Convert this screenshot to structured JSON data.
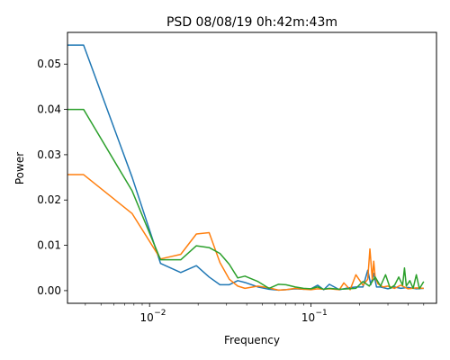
{
  "chart_data": {
    "type": "line",
    "title": "PSD 08/08/19 0h:42m:43m",
    "xlabel": "Frequency",
    "ylabel": "Power",
    "xscale": "log",
    "xlim": [
      0.0031,
      0.6
    ],
    "ylim": [
      -0.0028,
      0.057
    ],
    "yticks": [
      0.0,
      0.01,
      0.02,
      0.03,
      0.04,
      0.05
    ],
    "ytick_labels": [
      "0.00",
      "0.01",
      "0.02",
      "0.03",
      "0.04",
      "0.05"
    ],
    "xticks": [
      0.01,
      0.1
    ],
    "xtick_labels": [
      "10",
      "10"
    ],
    "xtick_exponents": [
      "−2",
      "−1"
    ],
    "grid": false,
    "series": [
      {
        "color": "#1f77b4",
        "x": [
          0.0031,
          0.0039,
          0.0078,
          0.0117,
          0.0156,
          0.0195,
          0.0234,
          0.0273,
          0.0312,
          0.0352,
          0.039,
          0.047,
          0.055,
          0.063,
          0.07,
          0.08,
          0.09,
          0.1,
          0.11,
          0.12,
          0.13,
          0.15,
          0.17,
          0.19,
          0.21,
          0.225,
          0.235,
          0.245,
          0.255,
          0.27,
          0.3,
          0.33,
          0.36,
          0.4,
          0.45,
          0.5
        ],
        "y": [
          0.0542,
          0.0542,
          0.025,
          0.006,
          0.004,
          0.0055,
          0.003,
          0.0013,
          0.0013,
          0.0022,
          0.0018,
          0.0008,
          0.0003,
          0.0001,
          0.0002,
          0.0004,
          0.0003,
          0.0004,
          0.0012,
          0.0002,
          0.0014,
          0.0002,
          0.0006,
          0.0008,
          0.0008,
          0.0045,
          0.0013,
          0.0038,
          0.0008,
          0.0008,
          0.0004,
          0.0008,
          0.0005,
          0.0007,
          0.0004,
          0.0005
        ]
      },
      {
        "color": "#ff7f0e",
        "x": [
          0.0031,
          0.0039,
          0.0078,
          0.0117,
          0.0156,
          0.0195,
          0.0234,
          0.0273,
          0.0312,
          0.0352,
          0.039,
          0.047,
          0.055,
          0.063,
          0.07,
          0.08,
          0.09,
          0.1,
          0.11,
          0.12,
          0.13,
          0.15,
          0.16,
          0.175,
          0.19,
          0.21,
          0.225,
          0.232,
          0.24,
          0.245,
          0.25,
          0.26,
          0.28,
          0.3,
          0.33,
          0.36,
          0.4,
          0.45,
          0.5
        ],
        "y": [
          0.0256,
          0.0256,
          0.017,
          0.007,
          0.008,
          0.0125,
          0.0128,
          0.0062,
          0.0025,
          0.001,
          0.0005,
          0.001,
          0.0006,
          0.0001,
          0.0002,
          0.0005,
          0.0003,
          0.0002,
          0.0004,
          0.0003,
          0.0004,
          0.0002,
          0.0017,
          0.0002,
          0.0035,
          0.0012,
          0.0025,
          0.0092,
          0.0025,
          0.0065,
          0.003,
          0.0015,
          0.0008,
          0.001,
          0.0005,
          0.0012,
          0.0004,
          0.0006,
          0.0005
        ]
      },
      {
        "color": "#2ca02c",
        "x": [
          0.0031,
          0.0039,
          0.0078,
          0.0117,
          0.0156,
          0.0195,
          0.0234,
          0.0273,
          0.0312,
          0.0352,
          0.039,
          0.047,
          0.055,
          0.063,
          0.07,
          0.08,
          0.09,
          0.1,
          0.11,
          0.12,
          0.13,
          0.15,
          0.17,
          0.19,
          0.21,
          0.23,
          0.25,
          0.27,
          0.29,
          0.31,
          0.33,
          0.35,
          0.37,
          0.38,
          0.39,
          0.41,
          0.43,
          0.45,
          0.47,
          0.5
        ],
        "y": [
          0.04,
          0.04,
          0.022,
          0.0068,
          0.0068,
          0.0099,
          0.0095,
          0.0082,
          0.0058,
          0.0028,
          0.0032,
          0.002,
          0.0005,
          0.0014,
          0.0013,
          0.0008,
          0.0005,
          0.0004,
          0.0008,
          0.0003,
          0.0005,
          0.0003,
          0.0004,
          0.0005,
          0.002,
          0.001,
          0.003,
          0.001,
          0.0035,
          0.0005,
          0.0012,
          0.003,
          0.0012,
          0.005,
          0.001,
          0.0022,
          0.0005,
          0.0035,
          0.0004,
          0.002
        ]
      }
    ]
  }
}
